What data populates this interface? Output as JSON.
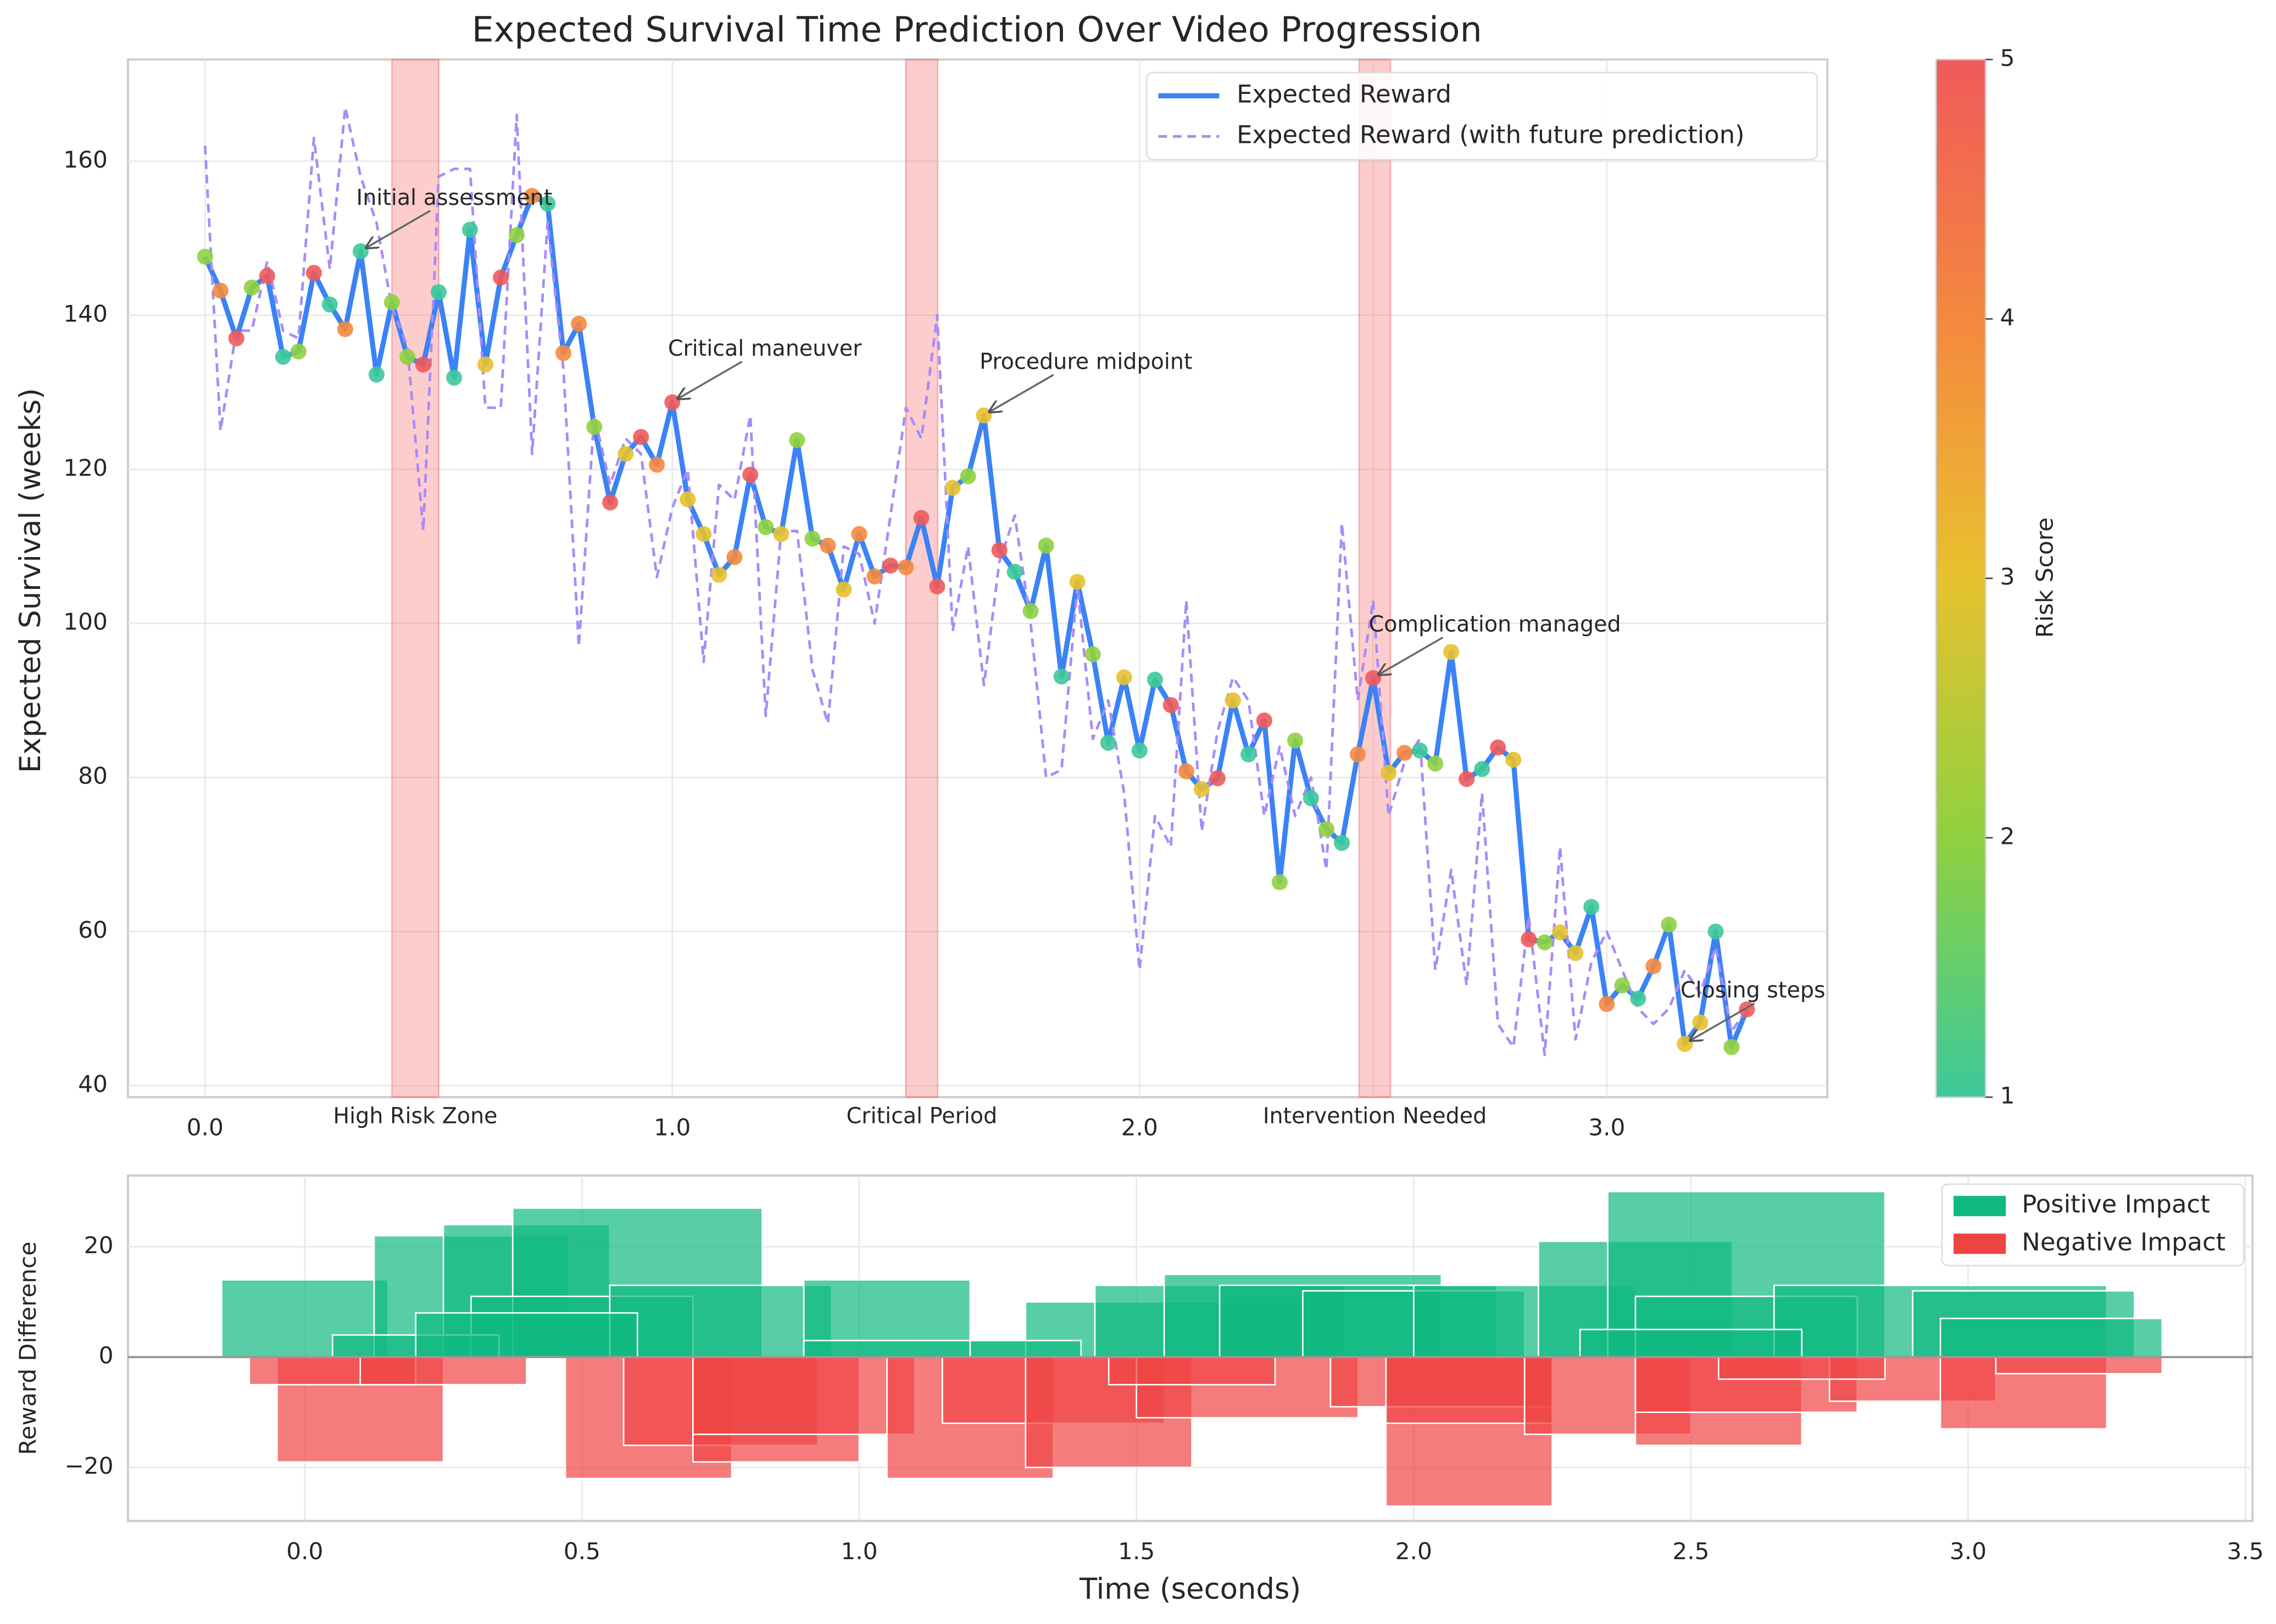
{
  "chart_data": [
    {
      "type": "line",
      "title": "Expected Survival Time Prediction Over Video Progression",
      "y_label": "Expected Survival (weeks)",
      "x": [
        0,
        0.033,
        0.067,
        0.1,
        0.133,
        0.167,
        0.2,
        0.233,
        0.267,
        0.3,
        0.333,
        0.367,
        0.4,
        0.433,
        0.467,
        0.5,
        0.533,
        0.567,
        0.6,
        0.633,
        0.667,
        0.7,
        0.733,
        0.767,
        0.8,
        0.833,
        0.867,
        0.9,
        0.933,
        0.967,
        1,
        1.033,
        1.067,
        1.1,
        1.133,
        1.167,
        1.2,
        1.233,
        1.267,
        1.3,
        1.333,
        1.367,
        1.4,
        1.433,
        1.467,
        1.5,
        1.533,
        1.567,
        1.6,
        1.633,
        1.667,
        1.7,
        1.733,
        1.767,
        1.8,
        1.833,
        1.867,
        1.9,
        1.933,
        1.967,
        2,
        2.033,
        2.067,
        2.1,
        2.133,
        2.167,
        2.2,
        2.233,
        2.267,
        2.3,
        2.333,
        2.367,
        2.4,
        2.433,
        2.467,
        2.5,
        2.533,
        2.567,
        2.6,
        2.633,
        2.667,
        2.7,
        2.733,
        2.767,
        2.8,
        2.833,
        2.867,
        2.9,
        2.933,
        2.967,
        3,
        3.033,
        3.067,
        3.1,
        3.133,
        3.167,
        3.2,
        3.233,
        3.267,
        3.3
      ],
      "series": [
        {
          "name": "Expected Reward",
          "color": "#3b82f6",
          "dashed": false,
          "values": [
            147.6,
            143.2,
            137,
            143.6,
            145.1,
            134.6,
            135.3,
            145.5,
            141.4,
            138.2,
            148.3,
            132.3,
            141.7,
            134.6,
            133.6,
            143,
            131.9,
            151.1,
            133.6,
            144.9,
            150.4,
            155.5,
            154.5,
            135.1,
            138.9,
            125.5,
            115.7,
            122,
            124.2,
            120.6,
            128.7,
            116.1,
            111.6,
            106.3,
            108.6,
            119.3,
            112.5,
            111.6,
            123.8,
            111,
            110.1,
            104.4,
            111.6,
            106.1,
            107.5,
            107.3,
            113.7,
            104.8,
            117.6,
            119.1,
            127,
            109.5,
            106.7,
            101.6,
            110.1,
            93.1,
            105.4,
            96,
            84.5,
            93,
            83.5,
            92.7,
            89.4,
            80.8,
            78.5,
            79.9,
            90,
            83,
            87.4,
            66.4,
            84.8,
            77.3,
            73.3,
            71.5,
            83,
            92.9,
            80.6,
            83.2,
            83.5,
            81.8,
            96.3,
            79.8,
            81.1,
            83.9,
            82.3,
            59,
            58.6,
            59.9,
            57.2,
            63.2,
            50.6,
            53,
            51.3,
            55.5,
            60.9,
            45.4,
            48.2,
            60,
            45,
            49.9
          ]
        },
        {
          "name": "Expected Reward (with future prediction)",
          "color": "#a78bfa",
          "dashed": true,
          "values": [
            162,
            125,
            138,
            138,
            147,
            138,
            137,
            163,
            146,
            167,
            158,
            152,
            141,
            136,
            112,
            158,
            159,
            159,
            128,
            128,
            166,
            122,
            152,
            133,
            97,
            127,
            118,
            124,
            122,
            106,
            115,
            120,
            95,
            118,
            116,
            127,
            88,
            112,
            112,
            94,
            87,
            110,
            109,
            100,
            114,
            128,
            124,
            140,
            99,
            110,
            92,
            108,
            114,
            100,
            80,
            81,
            105,
            85,
            90,
            78,
            55,
            75,
            71,
            103,
            73,
            86,
            93,
            90,
            75,
            84,
            75,
            80,
            68,
            113,
            90,
            103,
            75,
            82,
            85,
            55,
            68,
            53,
            78,
            48,
            45,
            62,
            44,
            71,
            46,
            56,
            60,
            55,
            50,
            48,
            50,
            55,
            52,
            58,
            47,
            50
          ]
        }
      ],
      "risk": [
        2,
        4,
        5,
        2,
        5,
        1,
        2,
        5,
        1,
        4,
        1,
        1,
        2,
        2,
        5,
        1,
        1,
        1,
        3,
        5,
        2,
        4,
        1,
        4,
        4,
        2,
        5,
        3,
        5,
        4,
        5,
        3,
        3,
        3,
        4,
        5,
        2,
        3,
        2,
        2,
        4,
        3,
        4,
        4,
        5,
        4,
        5,
        5,
        3,
        2,
        3,
        5,
        1,
        2,
        2,
        1,
        3,
        2,
        1,
        3,
        1,
        1,
        5,
        4,
        3,
        5,
        3,
        1,
        5,
        2,
        2,
        1,
        2,
        1,
        4,
        5,
        3,
        4,
        1,
        2,
        3,
        5,
        1,
        5,
        3,
        5,
        2,
        3,
        3,
        1,
        4,
        2,
        1,
        4,
        2,
        3,
        3,
        1,
        2,
        5
      ],
      "colorbar": {
        "label": "Risk Score",
        "lim": [
          1,
          5
        ],
        "ticks": [
          1,
          2,
          3,
          4,
          5
        ],
        "colors": [
          "#3cc99a",
          "#8fd13f",
          "#e8c12f",
          "#f5883f",
          "#ef5a5a"
        ]
      },
      "regions": [
        {
          "label": "High Risk Zone",
          "range": [
            0.4,
            0.5
          ]
        },
        {
          "label": "Critical Period",
          "range": [
            1.5,
            1.568
          ]
        },
        {
          "label": "Intervention Needed",
          "range": [
            2.47,
            2.537
          ]
        }
      ],
      "region_color": "#f87171",
      "annotations": [
        {
          "text": "Initial assessment",
          "x": 0.333,
          "y": 148.3
        },
        {
          "text": "Critical maneuver",
          "x": 1,
          "y": 128.7
        },
        {
          "text": "Procedure midpoint",
          "x": 1.667,
          "y": 127
        },
        {
          "text": "Complication managed",
          "x": 2.5,
          "y": 92.9
        },
        {
          "text": "Closing steps",
          "x": 3.167,
          "y": 45.4
        }
      ],
      "xlim": [
        -0.165,
        3.472
      ],
      "ylim": [
        38.5,
        173.2
      ],
      "xticks": [
        {
          "value": 0,
          "label": "0.0"
        },
        0.5,
        {
          "value": 1,
          "label": "1.0"
        },
        1.5,
        {
          "value": 2,
          "label": "2.0"
        },
        2.5,
        {
          "value": 3,
          "label": "3.0"
        }
      ],
      "yticks": [
        40,
        60,
        80,
        100,
        120,
        140,
        160
      ],
      "grid": true,
      "legend": "upper right"
    },
    {
      "type": "bar",
      "x_label": "Time (seconds)",
      "y_label": "Reward Difference",
      "x": [
        0,
        0.3,
        0.4,
        0.6,
        0.5,
        0.75,
        1.05,
        1.1,
        1.55,
        1.65,
        1.8,
        1.9,
        2,
        2.2,
        2.4,
        2.6,
        2.6,
        2.95,
        3.1,
        3.15,
        0.2,
        0.4,
        2.5,
        1.3,
        0.1,
        0.05,
        0.25,
        0.62,
        0.75,
        0.85,
        0.9,
        1.2,
        1.35,
        1.45,
        1.7,
        2.1,
        2.05,
        2.1,
        2.35,
        2.55,
        2.6,
        2.9,
        3.1,
        3.2,
        1.6,
        2.7
      ],
      "widths": [
        0.3,
        0.35,
        0.3,
        0.45,
        0.4,
        0.4,
        0.3,
        0.4,
        0.5,
        0.45,
        0.5,
        0.5,
        0.4,
        0.4,
        0.35,
        0.5,
        0.4,
        0.6,
        0.4,
        0.4,
        0.3,
        0.4,
        0.4,
        0.2,
        0.3,
        0.3,
        0.3,
        0.3,
        0.35,
        0.3,
        0.4,
        0.3,
        0.4,
        0.3,
        0.4,
        0.3,
        0.4,
        0.3,
        0.3,
        0.3,
        0.4,
        0.3,
        0.3,
        0.3,
        0.3,
        0.3
      ],
      "values": [
        14,
        22,
        24,
        27,
        11,
        13,
        14,
        3,
        10,
        13,
        15,
        13,
        12,
        13,
        21,
        30,
        11,
        13,
        12,
        7,
        4,
        8,
        5,
        3,
        -19,
        -5,
        -5,
        -22,
        -16,
        -19,
        -14,
        -22,
        -12,
        -20,
        -11,
        -27,
        -9,
        -12,
        -14,
        -16,
        -10,
        -8,
        -13,
        -3,
        -5,
        -4
      ],
      "legend_entries": [
        {
          "name": "Positive Impact",
          "color": "#10b981"
        },
        {
          "name": "Negative Impact",
          "color": "#ef4444"
        }
      ],
      "xlim": [
        -0.319,
        3.513
      ],
      "ylim": [
        -29.7,
        32.9
      ],
      "xticks": [
        {
          "value": 0,
          "label": "0.0"
        },
        0.5,
        {
          "value": 1,
          "label": "1.0"
        },
        1.5,
        {
          "value": 2,
          "label": "2.0"
        },
        2.5,
        {
          "value": 3,
          "label": "3.0"
        },
        3.5
      ],
      "yticks": [
        {
          "value": -20,
          "label": "−20"
        },
        0,
        20
      ],
      "grid": true,
      "legend": "upper right"
    }
  ]
}
